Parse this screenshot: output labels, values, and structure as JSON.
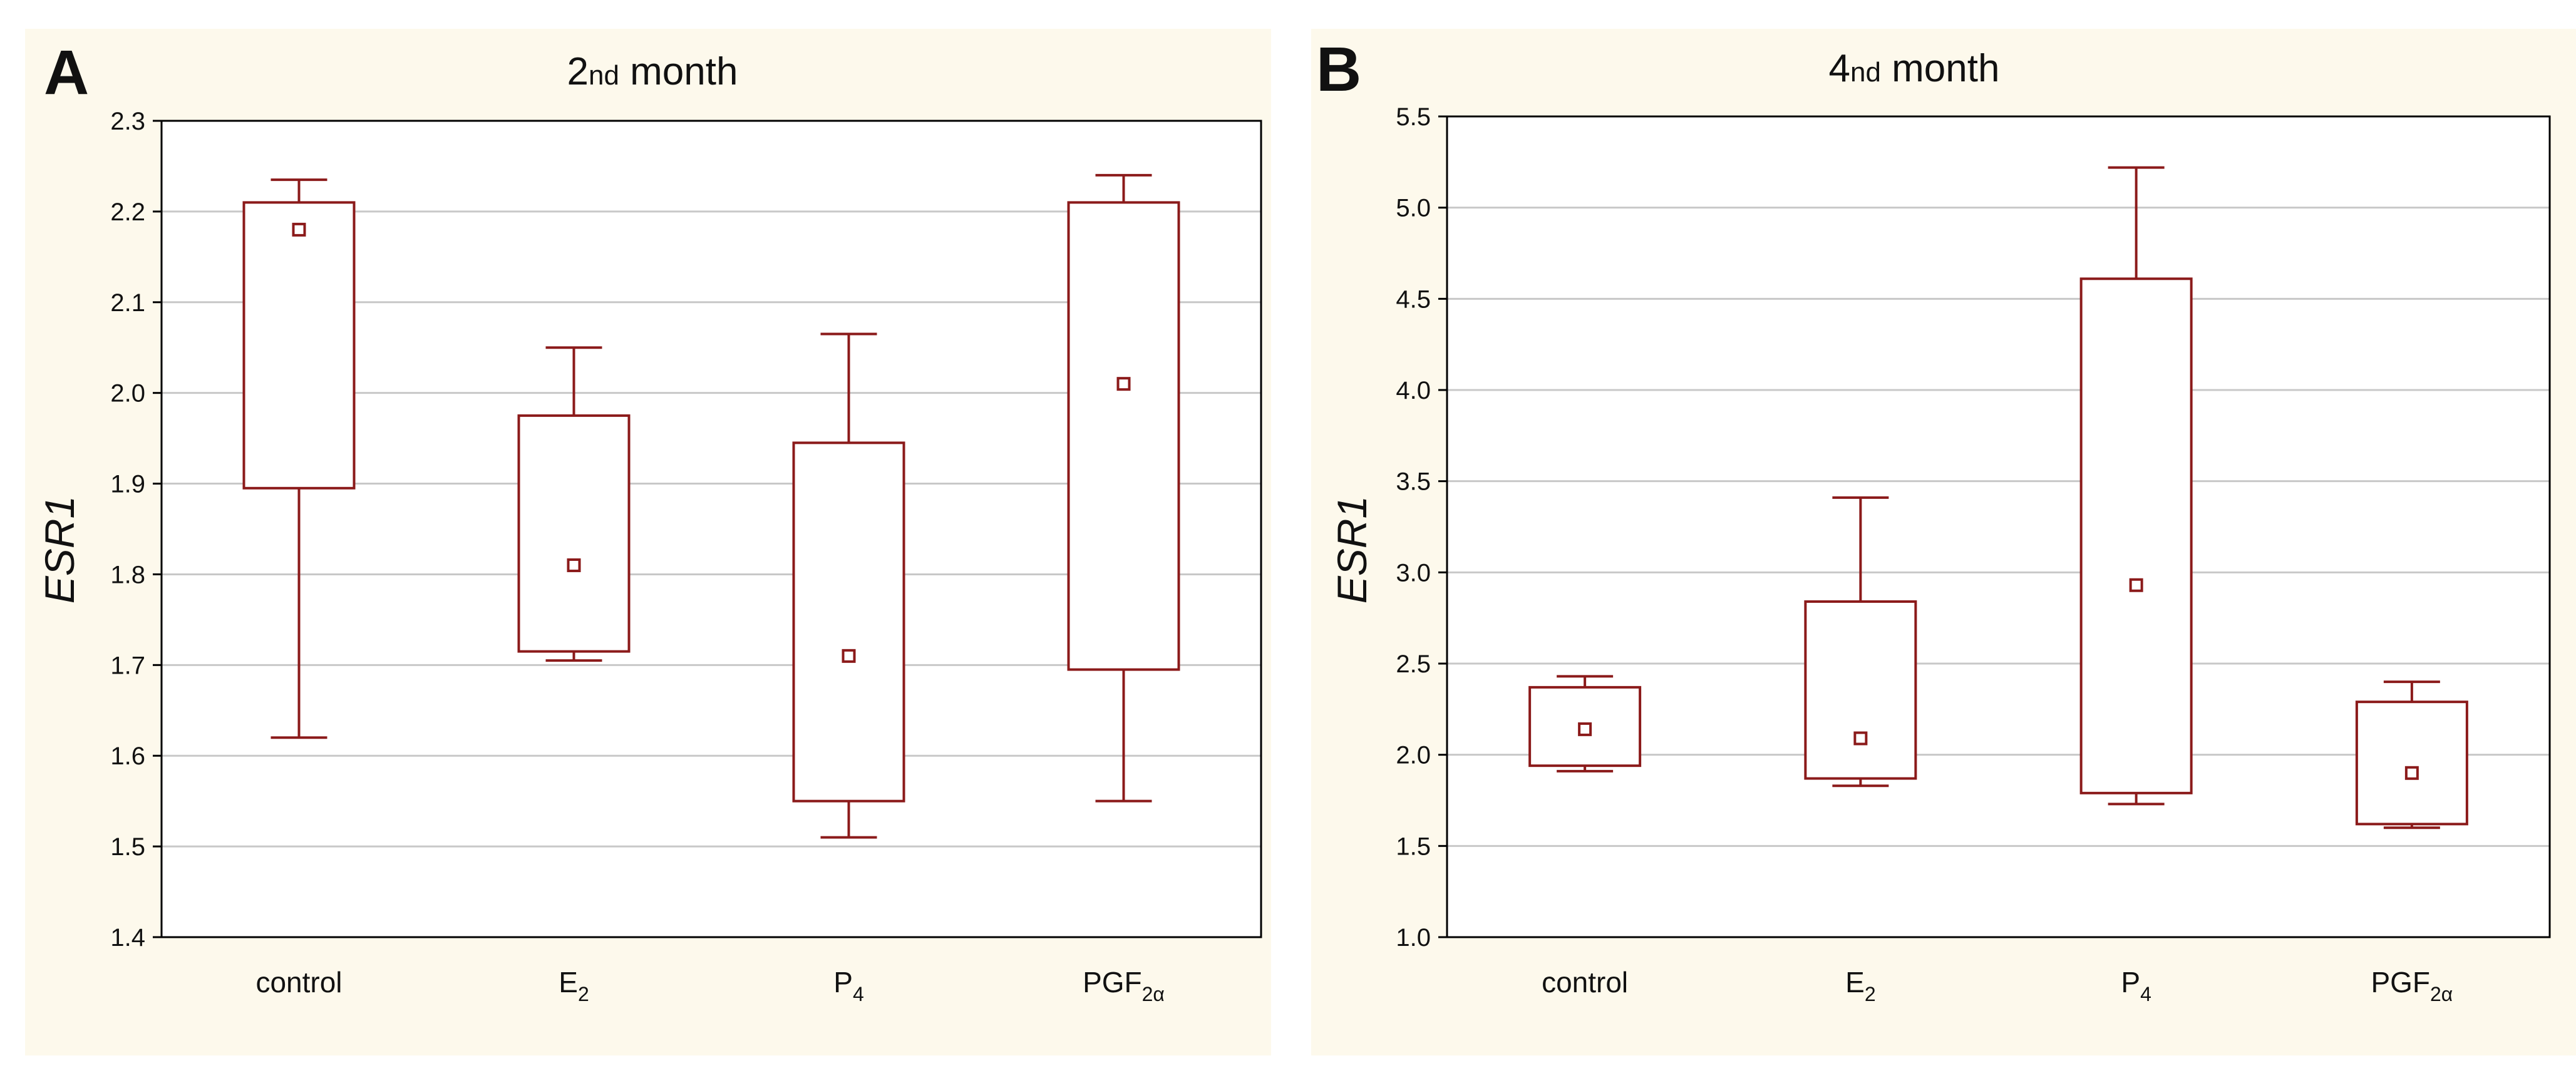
{
  "chart_data": [
    {
      "type": "box",
      "panel_label": "A",
      "title": {
        "prefix": "2",
        "sup": "nd",
        "rest": " month"
      },
      "ylabel": "ESR1",
      "xlabel": "",
      "ylim": [
        1.4,
        2.3
      ],
      "yticks": [
        "1.4",
        "1.5",
        "1.6",
        "1.7",
        "1.8",
        "1.9",
        "2.0",
        "2.1",
        "2.2",
        "2.3"
      ],
      "grid": true,
      "categories": [
        {
          "base": "control",
          "sub": ""
        },
        {
          "base": "E",
          "sub": "2"
        },
        {
          "base": "P",
          "sub": "4"
        },
        {
          "base": "PGF",
          "sub": "2α"
        }
      ],
      "boxes": [
        {
          "whisker_low": 1.62,
          "q1": 1.895,
          "median": 2.18,
          "q3": 2.21,
          "whisker_high": 2.235
        },
        {
          "whisker_low": 1.705,
          "q1": 1.715,
          "median": 1.81,
          "q3": 1.975,
          "whisker_high": 2.05
        },
        {
          "whisker_low": 1.51,
          "q1": 1.55,
          "median": 1.71,
          "q3": 1.945,
          "whisker_high": 2.065
        },
        {
          "whisker_low": 1.55,
          "q1": 1.695,
          "median": 2.01,
          "q3": 2.21,
          "whisker_high": 2.24
        }
      ]
    },
    {
      "type": "box",
      "panel_label": "B",
      "title": {
        "prefix": "4",
        "sup": "nd",
        "rest": " month"
      },
      "ylabel": "ESR1",
      "xlabel": "",
      "ylim": [
        1.0,
        5.5
      ],
      "yticks": [
        "1.0",
        "1.5",
        "2.0",
        "2.5",
        "3.0",
        "3.5",
        "4.0",
        "4.5",
        "5.0",
        "5.5"
      ],
      "grid": true,
      "categories": [
        {
          "base": "control",
          "sub": ""
        },
        {
          "base": "E",
          "sub": "2"
        },
        {
          "base": "P",
          "sub": "4"
        },
        {
          "base": "PGF",
          "sub": "2α"
        }
      ],
      "boxes": [
        {
          "whisker_low": 1.91,
          "q1": 1.94,
          "median": 2.14,
          "q3": 2.37,
          "whisker_high": 2.43
        },
        {
          "whisker_low": 1.83,
          "q1": 1.87,
          "median": 2.09,
          "q3": 2.84,
          "whisker_high": 3.41
        },
        {
          "whisker_low": 1.73,
          "q1": 1.79,
          "median": 2.93,
          "q3": 4.61,
          "whisker_high": 5.22
        },
        {
          "whisker_low": 1.6,
          "q1": 1.62,
          "median": 1.9,
          "q3": 2.29,
          "whisker_high": 2.4
        }
      ]
    }
  ],
  "colors": {
    "panel_background": "#fdf9ec",
    "plot_background": "#ffffff",
    "box_stroke": "#8b1a1a",
    "grid": "#c8c8c8",
    "axis": "#000000",
    "text": "#111111"
  }
}
